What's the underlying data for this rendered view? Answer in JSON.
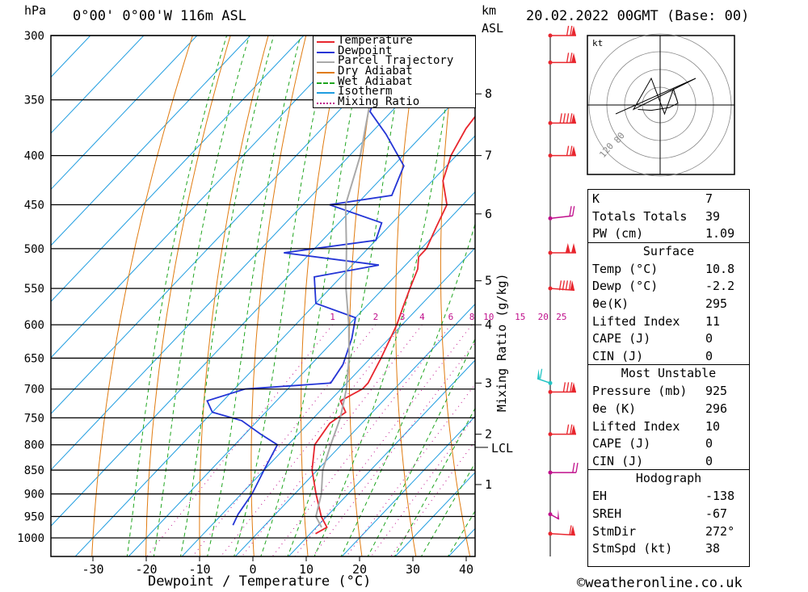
{
  "header": {
    "location": "0°00' 0°00'W 116m ASL",
    "datetime": "20.02.2022 00GMT (Base: 00)",
    "hpa_label": "hPa",
    "km_label": "km",
    "asl_label": "ASL",
    "credit": "©weatheronline.co.uk"
  },
  "chart_data": {
    "type": "skew-t",
    "xlabel": "Dewpoint / Temperature (°C)",
    "ylabel_left": "hPa",
    "ylabel_right": "Mixing Ratio (g/kg)",
    "pressure_levels": [
      300,
      350,
      400,
      450,
      500,
      550,
      600,
      650,
      700,
      750,
      800,
      850,
      900,
      950,
      1000
    ],
    "x_ticks": [
      -30,
      -20,
      -10,
      0,
      10,
      20,
      30,
      40
    ],
    "height_ticks_km": [
      {
        "p": 345,
        "km": "8"
      },
      {
        "p": 400,
        "km": "7"
      },
      {
        "p": 460,
        "km": "6"
      },
      {
        "p": 540,
        "km": "5"
      },
      {
        "p": 600,
        "km": "4"
      },
      {
        "p": 690,
        "km": "3"
      },
      {
        "p": 780,
        "km": "2"
      },
      {
        "p": 880,
        "km": "1"
      }
    ],
    "lcl_label": "LCL",
    "lcl_pressure": 805,
    "mixing_ratio_labels": [
      "1",
      "2",
      "3",
      "4",
      "6",
      "8",
      "10",
      "15",
      "20",
      "25"
    ],
    "mixing_ratio_values": [
      1,
      2,
      3,
      4,
      6,
      8,
      10,
      15,
      20,
      25
    ],
    "series": [
      {
        "name": "Temperature",
        "color": "#e8262e",
        "points": [
          [
            300,
            -43
          ],
          [
            325,
            -37
          ],
          [
            350,
            -34
          ],
          [
            375,
            -33
          ],
          [
            400,
            -31
          ],
          [
            425,
            -28
          ],
          [
            450,
            -23
          ],
          [
            475,
            -21
          ],
          [
            500,
            -19
          ],
          [
            510,
            -19
          ],
          [
            525,
            -17
          ],
          [
            550,
            -15
          ],
          [
            575,
            -13
          ],
          [
            600,
            -11
          ],
          [
            650,
            -8
          ],
          [
            690,
            -6
          ],
          [
            700,
            -6
          ],
          [
            720,
            -8
          ],
          [
            740,
            -5
          ],
          [
            760,
            -6
          ],
          [
            800,
            -5
          ],
          [
            850,
            -1
          ],
          [
            900,
            4
          ],
          [
            950,
            9
          ],
          [
            975,
            12
          ],
          [
            990,
            11
          ]
        ]
      },
      {
        "name": "Dewpoint",
        "color": "#2435d6",
        "points": [
          [
            300,
            -53
          ],
          [
            320,
            -49
          ],
          [
            345,
            -56
          ],
          [
            360,
            -54
          ],
          [
            380,
            -47
          ],
          [
            410,
            -38
          ],
          [
            440,
            -35
          ],
          [
            450,
            -45
          ],
          [
            470,
            -32
          ],
          [
            490,
            -30
          ],
          [
            505,
            -45
          ],
          [
            520,
            -25
          ],
          [
            535,
            -35
          ],
          [
            570,
            -30
          ],
          [
            590,
            -20
          ],
          [
            620,
            -17
          ],
          [
            660,
            -14
          ],
          [
            690,
            -13
          ],
          [
            700,
            -28
          ],
          [
            720,
            -33
          ],
          [
            740,
            -30
          ],
          [
            755,
            -23
          ],
          [
            780,
            -17
          ],
          [
            800,
            -12
          ],
          [
            850,
            -10
          ],
          [
            900,
            -8
          ],
          [
            945,
            -7
          ],
          [
            970,
            -6
          ]
        ]
      },
      {
        "name": "Parcel Trajectory",
        "color": "#a9a9a9",
        "points": [
          [
            300,
            -64
          ],
          [
            350,
            -56
          ],
          [
            400,
            -48
          ],
          [
            450,
            -42
          ],
          [
            500,
            -34
          ],
          [
            550,
            -27
          ],
          [
            600,
            -20
          ],
          [
            650,
            -14
          ],
          [
            700,
            -9
          ],
          [
            750,
            -5
          ],
          [
            800,
            -2
          ],
          [
            850,
            1
          ],
          [
            900,
            5
          ],
          [
            950,
            8
          ],
          [
            975,
            11
          ]
        ]
      }
    ],
    "legend": [
      {
        "name": "Temperature",
        "color": "#e8262e",
        "style": "solid"
      },
      {
        "name": "Dewpoint",
        "color": "#2435d6",
        "style": "solid"
      },
      {
        "name": "Parcel Trajectory",
        "color": "#a9a9a9",
        "style": "solid"
      },
      {
        "name": "Dry Adiabat",
        "color": "#e07b10",
        "style": "solid"
      },
      {
        "name": "Wet Adiabat",
        "color": "#1fa51f",
        "style": "dashed"
      },
      {
        "name": "Isotherm",
        "color": "#1f9de0",
        "style": "solid"
      },
      {
        "name": "Mixing Ratio",
        "color": "#c0108c",
        "style": "dotted"
      }
    ],
    "legend_position": "top-right",
    "background_lines": {
      "isotherm_color": "#1f9de0",
      "dry_adiabat_color": "#e07b10",
      "wet_adiabat_color": "#1fa51f",
      "mixing_ratio_color": "#c0108c"
    },
    "winds": [
      {
        "p": 300,
        "speed": 75,
        "dir": 270,
        "color": "#e8262e"
      },
      {
        "p": 320,
        "speed": 70,
        "dir": 270,
        "color": "#e8262e"
      },
      {
        "p": 370,
        "speed": 90,
        "dir": 270,
        "color": "#e8262e"
      },
      {
        "p": 400,
        "speed": 70,
        "dir": 270,
        "color": "#e8262e"
      },
      {
        "p": 465,
        "speed": 20,
        "dir": 300,
        "color": "#c0108c"
      },
      {
        "p": 505,
        "speed": 100,
        "dir": 270,
        "color": "#e8262e"
      },
      {
        "p": 550,
        "speed": 95,
        "dir": 250,
        "color": "#e8262e"
      },
      {
        "p": 690,
        "speed": 60,
        "dir": 30,
        "color": "#21c4c4"
      },
      {
        "p": 705,
        "speed": 80,
        "dir": 270,
        "color": "#e8262e"
      },
      {
        "p": 780,
        "speed": 70,
        "dir": 270,
        "color": "#e8262e"
      },
      {
        "p": 855,
        "speed": 20,
        "dir": 270,
        "color": "#c0108c"
      },
      {
        "p": 945,
        "speed": 50,
        "dir": 200,
        "color": "#c0108c"
      },
      {
        "p": 990,
        "speed": 60,
        "dir": 255,
        "color": "#e8262e"
      }
    ],
    "hodograph": {
      "unit_label": "kt",
      "ring_labels": [
        "80",
        "120"
      ],
      "trace_kt": [
        [
          -25,
          -5
        ],
        [
          -10,
          -6
        ],
        [
          10,
          -3
        ],
        [
          20,
          2
        ],
        [
          15,
          18
        ],
        [
          5,
          -10
        ],
        [
          -10,
          30
        ],
        [
          -30,
          -5
        ],
        [
          40,
          30
        ],
        [
          -50,
          -10
        ]
      ]
    }
  },
  "indices": {
    "rows": [
      {
        "label": "K",
        "value": "7"
      },
      {
        "label": "Totals Totals",
        "value": "39"
      },
      {
        "label": "PW (cm)",
        "value": "1.09"
      }
    ],
    "surface_title": "Surface",
    "surface": [
      {
        "label": "Temp (°C)",
        "value": "10.8"
      },
      {
        "label": "Dewp (°C)",
        "value": "-2.2"
      },
      {
        "label": "θe(K)",
        "value": "295"
      },
      {
        "label": "Lifted Index",
        "value": "11"
      },
      {
        "label": "CAPE (J)",
        "value": "0"
      },
      {
        "label": "CIN (J)",
        "value": "0"
      }
    ],
    "unstable_title": "Most Unstable",
    "unstable": [
      {
        "label": "Pressure (mb)",
        "value": "925"
      },
      {
        "label": "θe (K)",
        "value": "296"
      },
      {
        "label": "Lifted Index",
        "value": "10"
      },
      {
        "label": "CAPE (J)",
        "value": "0"
      },
      {
        "label": "CIN (J)",
        "value": "0"
      }
    ],
    "hodo_title": "Hodograph",
    "hodo": [
      {
        "label": "EH",
        "value": "-138"
      },
      {
        "label": "SREH",
        "value": "-67"
      },
      {
        "label": "StmDir",
        "value": "272°"
      },
      {
        "label": "StmSpd (kt)",
        "value": "38"
      }
    ]
  }
}
